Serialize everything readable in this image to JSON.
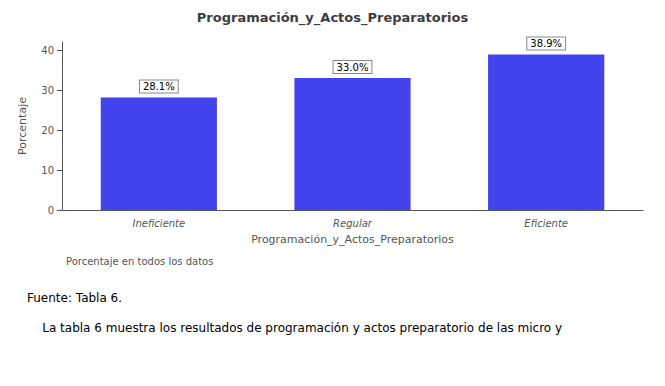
{
  "chart_data": {
    "type": "bar",
    "title": "Programación_y_Actos_Preparatorios",
    "xlabel": "Programación_y_Actos_Preparatorios",
    "ylabel": "Porcentaje",
    "categories": [
      "Ineficiente",
      "Regular",
      "Eficiente"
    ],
    "values": [
      28.1,
      33.0,
      38.9
    ],
    "value_labels": [
      "28.1%",
      "33.0%",
      "38.9%"
    ],
    "data_labels": true,
    "color": "#4444ee",
    "ylim": [
      0,
      42
    ],
    "yticks": [
      0,
      10,
      20,
      30,
      40
    ],
    "grid": false,
    "annotations": [
      "Porcentaje en todos los datos",
      "Fuente: Tabla 6.",
      "    La tabla 6 muestra los resultados de programación y actos preparatorio de las micro y"
    ]
  }
}
